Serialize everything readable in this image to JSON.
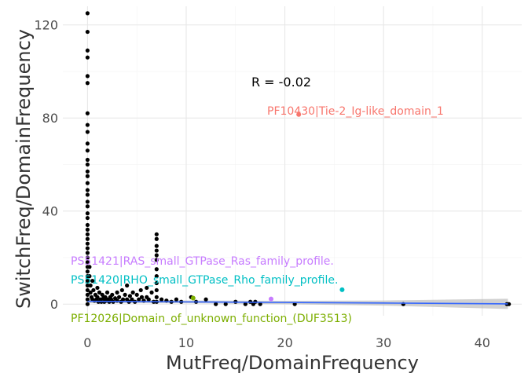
{
  "chart_data": {
    "type": "scatter",
    "xlabel": "MutFreq/DomainFrequency",
    "ylabel": "SwitchFreq/DomainFrequency",
    "xlim": [
      -2.5,
      44
    ],
    "ylim": [
      -5,
      128
    ],
    "x_ticks": [
      0,
      10,
      20,
      30,
      40
    ],
    "y_ticks": [
      0,
      40,
      80,
      120
    ],
    "x_tick_labels": [
      "0",
      "10",
      "20",
      "30",
      "40"
    ],
    "y_tick_labels": [
      "0",
      "40",
      "80",
      "120"
    ],
    "grid": true,
    "correlation_label": "R = -0.02",
    "regression": {
      "color": "#3366ff",
      "band_color": "#b3b3b3",
      "x": [
        0,
        10,
        20,
        30,
        42.6
      ],
      "y": [
        1.2,
        0.95,
        0.7,
        0.45,
        0.1
      ],
      "band_half_width": [
        0.8,
        0.6,
        0.7,
        1.1,
        2.2
      ]
    },
    "points": [
      {
        "x": 0,
        "y": 125
      },
      {
        "x": 0,
        "y": 117
      },
      {
        "x": 0,
        "y": 109
      },
      {
        "x": 0,
        "y": 106
      },
      {
        "x": 0,
        "y": 98
      },
      {
        "x": 0,
        "y": 95
      },
      {
        "x": 0,
        "y": 82
      },
      {
        "x": 0,
        "y": 77
      },
      {
        "x": 0,
        "y": 74
      },
      {
        "x": 0,
        "y": 69
      },
      {
        "x": 0,
        "y": 66
      },
      {
        "x": 0,
        "y": 62
      },
      {
        "x": 0,
        "y": 60
      },
      {
        "x": 0,
        "y": 57
      },
      {
        "x": 0,
        "y": 55
      },
      {
        "x": 0,
        "y": 52
      },
      {
        "x": 0,
        "y": 49
      },
      {
        "x": 0,
        "y": 47
      },
      {
        "x": 0,
        "y": 44
      },
      {
        "x": 0,
        "y": 42
      },
      {
        "x": 0,
        "y": 39
      },
      {
        "x": 0,
        "y": 37
      },
      {
        "x": 0,
        "y": 34
      },
      {
        "x": 0,
        "y": 32
      },
      {
        "x": 0,
        "y": 30
      },
      {
        "x": 0,
        "y": 28
      },
      {
        "x": 0,
        "y": 26
      },
      {
        "x": 0,
        "y": 24
      },
      {
        "x": 0,
        "y": 22
      },
      {
        "x": 0,
        "y": 20
      },
      {
        "x": 0,
        "y": 18
      },
      {
        "x": 0,
        "y": 16
      },
      {
        "x": 0,
        "y": 14
      },
      {
        "x": 0,
        "y": 12
      },
      {
        "x": 0,
        "y": 10
      },
      {
        "x": 0,
        "y": 8
      },
      {
        "x": 0,
        "y": 6
      },
      {
        "x": 0,
        "y": 4
      },
      {
        "x": 0,
        "y": 2
      },
      {
        "x": 0,
        "y": 0
      },
      {
        "x": 0.2,
        "y": 16
      },
      {
        "x": 0.2,
        "y": 12
      },
      {
        "x": 0.3,
        "y": 8
      },
      {
        "x": 0.3,
        "y": 5
      },
      {
        "x": 0.4,
        "y": 3
      },
      {
        "x": 0.5,
        "y": 10
      },
      {
        "x": 0.5,
        "y": 2
      },
      {
        "x": 0.6,
        "y": 6
      },
      {
        "x": 0.7,
        "y": 1.5
      },
      {
        "x": 0.8,
        "y": 4
      },
      {
        "x": 0.9,
        "y": 2
      },
      {
        "x": 1.0,
        "y": 7
      },
      {
        "x": 1.0,
        "y": 3
      },
      {
        "x": 1.1,
        "y": 1
      },
      {
        "x": 1.2,
        "y": 5
      },
      {
        "x": 1.3,
        "y": 2
      },
      {
        "x": 1.4,
        "y": 1
      },
      {
        "x": 1.5,
        "y": 4
      },
      {
        "x": 1.6,
        "y": 2.5
      },
      {
        "x": 1.7,
        "y": 1
      },
      {
        "x": 1.8,
        "y": 3
      },
      {
        "x": 1.9,
        "y": 1.5
      },
      {
        "x": 2.0,
        "y": 5
      },
      {
        "x": 2.0,
        "y": 2
      },
      {
        "x": 2.2,
        "y": 1
      },
      {
        "x": 2.3,
        "y": 3
      },
      {
        "x": 2.4,
        "y": 2
      },
      {
        "x": 2.5,
        "y": 4
      },
      {
        "x": 2.6,
        "y": 1
      },
      {
        "x": 2.8,
        "y": 2.5
      },
      {
        "x": 3.0,
        "y": 5
      },
      {
        "x": 3.0,
        "y": 1.5
      },
      {
        "x": 3.2,
        "y": 3
      },
      {
        "x": 3.4,
        "y": 1
      },
      {
        "x": 3.5,
        "y": 6
      },
      {
        "x": 3.6,
        "y": 2
      },
      {
        "x": 3.8,
        "y": 4
      },
      {
        "x": 4.0,
        "y": 2
      },
      {
        "x": 4.0,
        "y": 8
      },
      {
        "x": 4.2,
        "y": 1
      },
      {
        "x": 4.3,
        "y": 3.5
      },
      {
        "x": 4.5,
        "y": 2
      },
      {
        "x": 4.6,
        "y": 5
      },
      {
        "x": 4.8,
        "y": 1
      },
      {
        "x": 5.0,
        "y": 4
      },
      {
        "x": 5.2,
        "y": 2
      },
      {
        "x": 5.4,
        "y": 6
      },
      {
        "x": 5.5,
        "y": 3
      },
      {
        "x": 5.7,
        "y": 1.5
      },
      {
        "x": 6.0,
        "y": 7
      },
      {
        "x": 6.0,
        "y": 3
      },
      {
        "x": 6.2,
        "y": 2
      },
      {
        "x": 6.5,
        "y": 5
      },
      {
        "x": 6.7,
        "y": 1
      },
      {
        "x": 7.0,
        "y": 30
      },
      {
        "x": 7.0,
        "y": 28
      },
      {
        "x": 7.0,
        "y": 25
      },
      {
        "x": 7.0,
        "y": 23
      },
      {
        "x": 7.0,
        "y": 21
      },
      {
        "x": 7.0,
        "y": 19
      },
      {
        "x": 7.0,
        "y": 15
      },
      {
        "x": 7.0,
        "y": 12
      },
      {
        "x": 7.0,
        "y": 9
      },
      {
        "x": 7.0,
        "y": 6
      },
      {
        "x": 7.0,
        "y": 3
      },
      {
        "x": 7.0,
        "y": 1
      },
      {
        "x": 7.5,
        "y": 2
      },
      {
        "x": 8.0,
        "y": 1.5
      },
      {
        "x": 8.5,
        "y": 1
      },
      {
        "x": 9.0,
        "y": 2
      },
      {
        "x": 9.5,
        "y": 1
      },
      {
        "x": 10.5,
        "y": 3
      },
      {
        "x": 11.0,
        "y": 1
      },
      {
        "x": 12.0,
        "y": 2
      },
      {
        "x": 13.0,
        "y": 0
      },
      {
        "x": 14.0,
        "y": 0
      },
      {
        "x": 15.0,
        "y": 1
      },
      {
        "x": 16.0,
        "y": 0
      },
      {
        "x": 16.5,
        "y": 1
      },
      {
        "x": 16.8,
        "y": 0
      },
      {
        "x": 17.0,
        "y": 1
      },
      {
        "x": 17.5,
        "y": 0
      },
      {
        "x": 21.0,
        "y": 0
      },
      {
        "x": 32.0,
        "y": 0
      },
      {
        "x": 42.5,
        "y": 0
      },
      {
        "x": 42.7,
        "y": 0
      }
    ],
    "highlighted": [
      {
        "label": "PF10430|Tie-2_Ig-like_domain_1",
        "x": 21.4,
        "y": 81.5,
        "color": "#f8766d"
      },
      {
        "label": "PS51421|RAS_small_GTPase_Ras_family_profile.",
        "x": 18.6,
        "y": 2.2,
        "color": "#c77cff"
      },
      {
        "label": "PS51420|RHO_small_GTPase_Rho_family_profile.",
        "x": 25.8,
        "y": 6.2,
        "color": "#00bfc4"
      },
      {
        "label": "PF12026|Domain_of_unknown_function_(DUF3513)",
        "x": 10.7,
        "y": 2.6,
        "color": "#7cae00"
      }
    ]
  }
}
